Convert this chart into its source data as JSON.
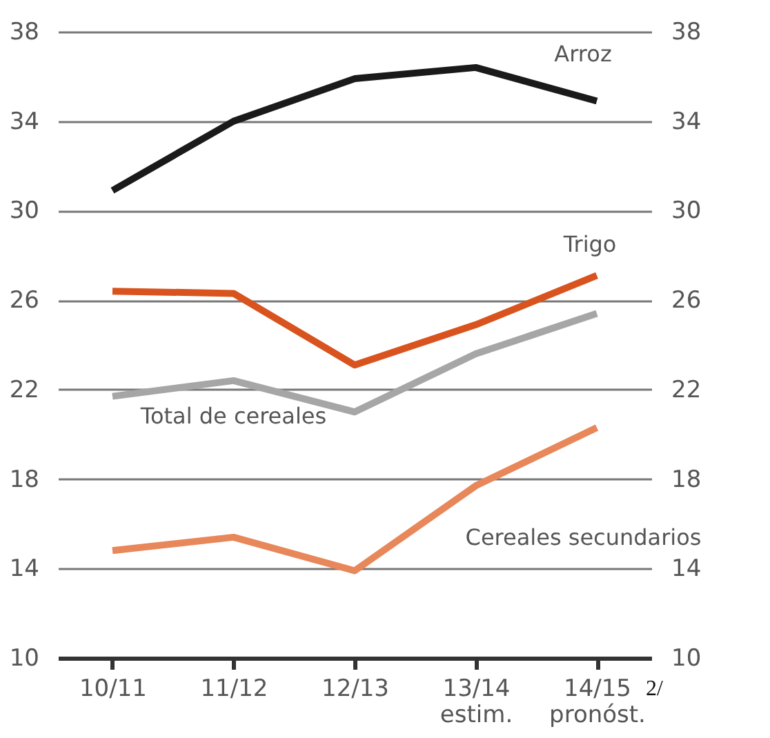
{
  "chart_data": {
    "type": "line",
    "categories": [
      "10/11",
      "11/12",
      "12/13",
      "13/14\nestim.",
      "14/15\npronóst."
    ],
    "series": [
      {
        "name": "Arroz",
        "color": "#1a1a1a",
        "values": [
          30.9,
          34.0,
          35.9,
          36.4,
          34.9
        ]
      },
      {
        "name": "Trigo",
        "color": "#d9531e",
        "values": [
          26.4,
          26.3,
          23.1,
          24.9,
          27.1
        ]
      },
      {
        "name": "Total de cereales",
        "color": "#a6a6a6",
        "values": [
          21.7,
          22.4,
          21.0,
          23.6,
          25.4
        ]
      },
      {
        "name": "Cereales secundarios",
        "color": "#e8875a",
        "values": [
          14.8,
          15.4,
          13.9,
          17.7,
          20.3
        ]
      }
    ],
    "ylim": [
      10,
      38
    ],
    "yticks": [
      10,
      14,
      18,
      22,
      26,
      30,
      34,
      38
    ],
    "y2lim": [
      10,
      38
    ],
    "y2ticks": [
      10,
      14,
      18,
      22,
      26,
      30,
      34,
      38
    ],
    "grid": "y",
    "marker": "none",
    "line_style": "solid",
    "annotations": [
      "2/"
    ]
  }
}
